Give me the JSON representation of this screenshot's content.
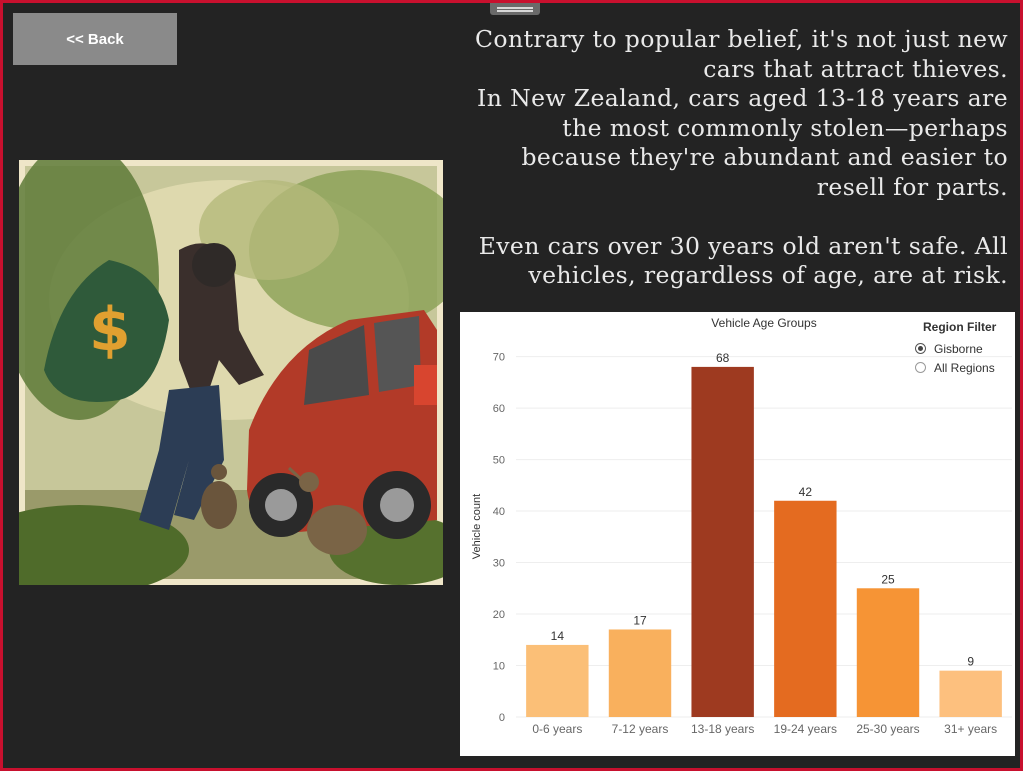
{
  "nav": {
    "back_label": "<< Back"
  },
  "story": {
    "text": "Contrary to popular belief, it's not just new\ncars that attract thieves. \nIn New Zealand, cars aged 13-18 years are\nthe most commonly stolen—perhaps\nbecause they're abundant and easier to\nresell for parts. \n\nEven cars over 30 years old aren't safe. All\nvehicles, regardless of age, are at risk."
  },
  "image": {
    "icon": "dollar-sign-icon"
  },
  "region_filter": {
    "title": "Region Filter",
    "options": [
      {
        "label": "Gisborne",
        "selected": true
      },
      {
        "label": "All Regions",
        "selected": false
      }
    ]
  },
  "chart_data": {
    "type": "bar",
    "title": "Vehicle Age Groups",
    "xlabel": "",
    "ylabel": "Vehicle count",
    "categories": [
      "0-6 years",
      "7-12 years",
      "13-18 years",
      "19-24 years",
      "25-30 years",
      "31+ years"
    ],
    "values": [
      14,
      17,
      68,
      42,
      25,
      9
    ],
    "colors": [
      "#fbbf77",
      "#f9b05d",
      "#9e3a20",
      "#e46b20",
      "#f69435",
      "#fdc07e"
    ],
    "ylim": [
      0,
      74
    ],
    "yticks": [
      0,
      10,
      20,
      30,
      40,
      50,
      60,
      70
    ],
    "grid": true,
    "legend": "top-right"
  }
}
